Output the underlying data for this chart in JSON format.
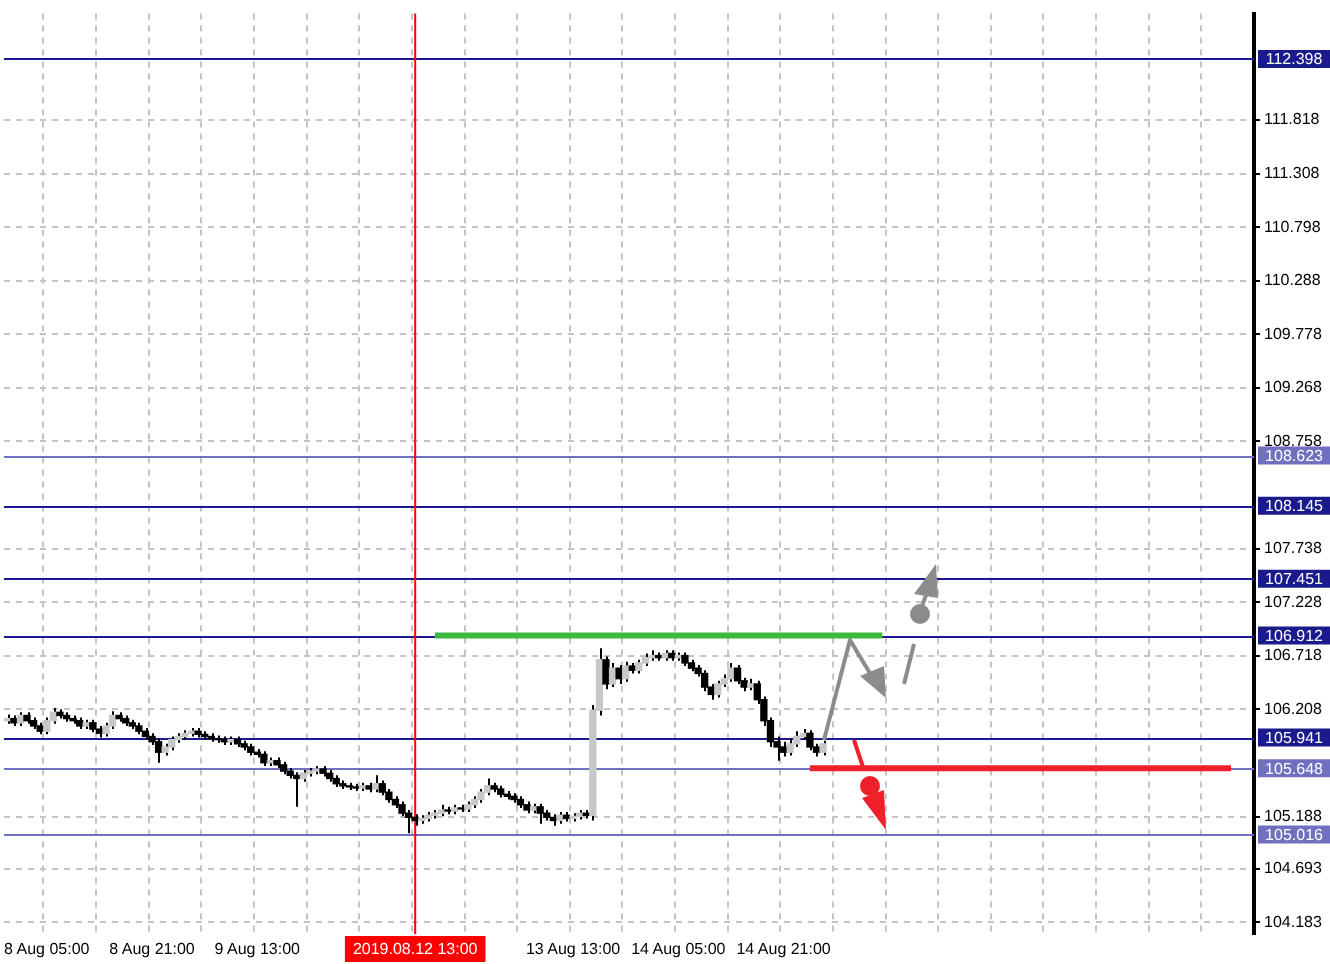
{
  "chart_data": {
    "type": "candlestick",
    "categories": [
      null,
      null,
      null,
      null,
      null,
      null,
      "8 Aug 05:00",
      null,
      null,
      null,
      null,
      null,
      null,
      null,
      null,
      null,
      null,
      null,
      null,
      null,
      null,
      null,
      "8 Aug 21:00",
      null,
      null,
      null,
      null,
      null,
      null,
      null,
      null,
      null,
      null,
      null,
      null,
      null,
      null,
      null,
      "9 Aug 13:00",
      null,
      null,
      null,
      null,
      null,
      null,
      null,
      null,
      null,
      null,
      null,
      null,
      null,
      null,
      null,
      null,
      null,
      null,
      null,
      null,
      null,
      null,
      null,
      "2019.08.12 13:00",
      null,
      null,
      null,
      null,
      null,
      null,
      null,
      null,
      null,
      null,
      null,
      null,
      null,
      null,
      null,
      null,
      null,
      null,
      null,
      null,
      null,
      null,
      null,
      "13 Aug 13:00",
      null,
      null,
      null,
      null,
      null,
      null,
      null,
      null,
      null,
      null,
      null,
      null,
      null,
      null,
      null,
      "14 Aug 05:00",
      null,
      null,
      null,
      null,
      null,
      null,
      null,
      null,
      null,
      null,
      null,
      null,
      null,
      null,
      null,
      "14 Aug 21:00",
      null,
      null,
      null,
      null,
      null,
      null,
      null,
      null,
      null,
      null,
      null,
      null,
      null,
      null,
      null,
      null,
      null,
      null,
      null,
      null,
      null,
      null,
      null,
      null,
      null,
      null,
      null,
      null,
      null,
      null,
      null,
      null,
      null,
      null,
      null,
      null,
      null,
      null,
      null,
      null,
      null,
      null,
      null,
      null,
      null,
      null,
      null,
      null,
      null,
      null,
      null,
      null,
      null,
      null,
      null,
      null,
      null,
      null,
      null,
      null,
      null,
      null,
      null,
      null,
      null,
      null,
      null,
      null,
      null,
      null,
      null
    ],
    "ohlc": [
      [
        106.1,
        106.16,
        106.07,
        106.12
      ],
      [
        106.12,
        106.15,
        106.05,
        106.08
      ],
      [
        106.08,
        106.18,
        106.05,
        106.15
      ],
      [
        106.15,
        106.18,
        106.07,
        106.1
      ],
      [
        106.1,
        106.13,
        106.02,
        106.05
      ],
      [
        106.05,
        106.08,
        105.97,
        106.0
      ],
      [
        106.0,
        106.13,
        105.97,
        106.1
      ],
      [
        106.1,
        106.22,
        106.07,
        106.18
      ],
      [
        106.18,
        106.21,
        106.12,
        106.15
      ],
      [
        106.15,
        106.18,
        106.09,
        106.12
      ],
      [
        106.12,
        106.15,
        106.07,
        106.1
      ],
      [
        106.1,
        106.13,
        106.02,
        106.05
      ],
      [
        106.05,
        106.11,
        106.02,
        106.08
      ],
      [
        106.08,
        106.11,
        105.99,
        106.02
      ],
      [
        106.02,
        106.05,
        105.94,
        105.98
      ],
      [
        105.98,
        106.08,
        105.95,
        106.05
      ],
      [
        106.05,
        106.19,
        106.02,
        106.15
      ],
      [
        106.15,
        106.18,
        106.09,
        106.12
      ],
      [
        106.12,
        106.15,
        106.05,
        106.08
      ],
      [
        106.08,
        106.11,
        106.02,
        106.05
      ],
      [
        106.05,
        106.08,
        105.97,
        106.0
      ],
      [
        106.0,
        106.03,
        105.92,
        105.95
      ],
      [
        105.95,
        105.98,
        105.87,
        105.9
      ],
      [
        105.9,
        105.93,
        105.7,
        105.8
      ],
      [
        105.8,
        105.88,
        105.77,
        105.85
      ],
      [
        105.85,
        105.95,
        105.82,
        105.92
      ],
      [
        105.92,
        105.98,
        105.89,
        105.95
      ],
      [
        105.95,
        106.01,
        105.92,
        105.98
      ],
      [
        105.98,
        106.03,
        105.95,
        106.0
      ],
      [
        106.0,
        106.03,
        105.94,
        105.97
      ],
      [
        105.97,
        106.0,
        105.92,
        105.95
      ],
      [
        105.95,
        105.98,
        105.9,
        105.93
      ],
      [
        105.93,
        105.96,
        105.89,
        105.92
      ],
      [
        105.92,
        105.95,
        105.87,
        105.9
      ],
      [
        105.9,
        105.95,
        105.87,
        105.92
      ],
      [
        105.92,
        105.95,
        105.85,
        105.88
      ],
      [
        105.88,
        105.91,
        105.82,
        105.85
      ],
      [
        105.85,
        105.88,
        105.77,
        105.8
      ],
      [
        105.8,
        105.83,
        105.75,
        105.78
      ],
      [
        105.78,
        105.81,
        105.67,
        105.7
      ],
      [
        105.7,
        105.75,
        105.67,
        105.72
      ],
      [
        105.72,
        105.75,
        105.65,
        105.68
      ],
      [
        105.68,
        105.71,
        105.59,
        105.62
      ],
      [
        105.62,
        105.65,
        105.55,
        105.58
      ],
      [
        105.58,
        105.61,
        105.28,
        105.55
      ],
      [
        105.55,
        105.63,
        105.52,
        105.6
      ],
      [
        105.6,
        105.65,
        105.57,
        105.62
      ],
      [
        105.62,
        105.67,
        105.59,
        105.64
      ],
      [
        105.64,
        105.67,
        105.57,
        105.6
      ],
      [
        105.6,
        105.63,
        105.52,
        105.55
      ],
      [
        105.55,
        105.58,
        105.47,
        105.5
      ],
      [
        105.5,
        105.53,
        105.45,
        105.48
      ],
      [
        105.48,
        105.51,
        105.44,
        105.47
      ],
      [
        105.47,
        105.5,
        105.43,
        105.46
      ],
      [
        105.46,
        105.51,
        105.43,
        105.48
      ],
      [
        105.48,
        105.51,
        105.42,
        105.45
      ],
      [
        105.45,
        105.58,
        105.42,
        105.5
      ],
      [
        105.5,
        105.53,
        105.39,
        105.42
      ],
      [
        105.42,
        105.45,
        105.32,
        105.35
      ],
      [
        105.35,
        105.38,
        105.27,
        105.3
      ],
      [
        105.3,
        105.33,
        105.19,
        105.22
      ],
      [
        105.22,
        105.25,
        105.03,
        105.18
      ],
      [
        105.18,
        105.21,
        105.1,
        105.15
      ],
      [
        105.15,
        105.2,
        105.12,
        105.17
      ],
      [
        105.17,
        105.23,
        105.14,
        105.2
      ],
      [
        105.2,
        105.25,
        105.17,
        105.22
      ],
      [
        105.22,
        105.3,
        105.19,
        105.25
      ],
      [
        105.25,
        105.28,
        105.21,
        105.24
      ],
      [
        105.24,
        105.3,
        105.21,
        105.27
      ],
      [
        105.27,
        105.3,
        105.23,
        105.26
      ],
      [
        105.26,
        105.33,
        105.23,
        105.3
      ],
      [
        105.3,
        105.38,
        105.27,
        105.35
      ],
      [
        105.35,
        105.45,
        105.32,
        105.42
      ],
      [
        105.42,
        105.55,
        105.39,
        105.48
      ],
      [
        105.48,
        105.51,
        105.42,
        105.45
      ],
      [
        105.45,
        105.48,
        105.37,
        105.4
      ],
      [
        105.4,
        105.43,
        105.35,
        105.38
      ],
      [
        105.38,
        105.41,
        105.32,
        105.35
      ],
      [
        105.35,
        105.38,
        105.27,
        105.3
      ],
      [
        105.3,
        105.33,
        105.22,
        105.25
      ],
      [
        105.25,
        105.31,
        105.22,
        105.28
      ],
      [
        105.28,
        105.31,
        105.12,
        105.22
      ],
      [
        105.22,
        105.25,
        105.15,
        105.18
      ],
      [
        105.18,
        105.21,
        105.1,
        105.15
      ],
      [
        105.15,
        105.23,
        105.12,
        105.2
      ],
      [
        105.2,
        105.23,
        105.14,
        105.17
      ],
      [
        105.17,
        105.22,
        105.14,
        105.19
      ],
      [
        105.19,
        105.25,
        105.16,
        105.22
      ],
      [
        105.22,
        105.25,
        105.17,
        105.2
      ],
      [
        105.2,
        106.25,
        105.15,
        106.2
      ],
      [
        106.2,
        106.79,
        106.15,
        106.68
      ],
      [
        106.68,
        106.71,
        106.4,
        106.45
      ],
      [
        106.45,
        106.65,
        106.42,
        106.6
      ],
      [
        106.6,
        106.63,
        106.45,
        106.5
      ],
      [
        106.5,
        106.66,
        106.47,
        106.62
      ],
      [
        106.62,
        106.65,
        106.55,
        106.58
      ],
      [
        106.58,
        106.68,
        106.55,
        106.65
      ],
      [
        106.65,
        106.74,
        106.62,
        106.7
      ],
      [
        106.7,
        106.77,
        106.67,
        106.72
      ],
      [
        106.72,
        106.75,
        106.67,
        106.7
      ],
      [
        106.7,
        106.77,
        106.67,
        106.74
      ],
      [
        106.74,
        106.77,
        106.67,
        106.7
      ],
      [
        106.7,
        106.75,
        106.67,
        106.72
      ],
      [
        106.72,
        106.75,
        106.62,
        106.65
      ],
      [
        106.65,
        106.68,
        106.57,
        106.6
      ],
      [
        106.6,
        106.63,
        106.52,
        106.55
      ],
      [
        106.55,
        106.58,
        106.38,
        106.42
      ],
      [
        106.42,
        106.45,
        106.3,
        106.35
      ],
      [
        106.35,
        106.48,
        106.32,
        106.45
      ],
      [
        106.45,
        106.54,
        106.42,
        106.5
      ],
      [
        106.5,
        106.65,
        106.47,
        106.6
      ],
      [
        106.6,
        106.63,
        106.45,
        106.48
      ],
      [
        106.48,
        106.51,
        106.38,
        106.42
      ],
      [
        106.42,
        106.5,
        106.39,
        106.45
      ],
      [
        106.45,
        106.48,
        106.26,
        106.3
      ],
      [
        106.3,
        106.33,
        106.05,
        106.1
      ],
      [
        106.1,
        106.13,
        105.85,
        105.9
      ],
      [
        105.9,
        105.95,
        105.72,
        105.85
      ],
      [
        105.85,
        105.9,
        105.76,
        105.8
      ],
      [
        105.8,
        105.93,
        105.77,
        105.88
      ],
      [
        105.88,
        106.0,
        105.85,
        105.95
      ],
      [
        105.95,
        106.02,
        105.92,
        105.98
      ],
      [
        105.98,
        106.01,
        105.82,
        105.85
      ],
      [
        105.85,
        105.88,
        105.76,
        105.8
      ],
      [
        105.8,
        105.91,
        105.77,
        105.88
      ],
      null,
      null,
      null,
      null,
      null,
      null,
      null,
      null,
      null,
      null,
      null,
      null,
      null,
      null,
      null,
      null,
      null,
      null,
      null,
      null,
      null,
      null,
      null,
      null,
      null,
      null,
      null,
      null,
      null,
      null,
      null,
      null,
      null,
      null,
      null,
      null,
      null,
      null,
      null,
      null,
      null,
      null,
      null,
      null,
      null,
      null,
      null,
      null,
      null,
      null,
      null,
      null,
      null,
      null,
      null,
      null,
      null,
      null,
      null,
      null,
      null,
      null,
      null,
      null,
      null
    ],
    "series": [
      {
        "type": "line",
        "color": "#3cb83c",
        "values": [
          null,
          null,
          null,
          null,
          null,
          null,
          null,
          null,
          null,
          null,
          null,
          null,
          null,
          null,
          null,
          null,
          null,
          null,
          null,
          null,
          null,
          null,
          null,
          null,
          null,
          null,
          null,
          null,
          null,
          null,
          null,
          null,
          null,
          null,
          null,
          null,
          null,
          null,
          null,
          null,
          null,
          null,
          null,
          null,
          null,
          null,
          null,
          null,
          null,
          null,
          null,
          null,
          null,
          null,
          null,
          null,
          null,
          null,
          null,
          null,
          null,
          null,
          null,
          null,
          null,
          106.912,
          106.912,
          106.912,
          106.912,
          106.912,
          106.912,
          106.912,
          106.912,
          106.912,
          106.912,
          106.912,
          106.912,
          106.912,
          106.912,
          106.912,
          106.912,
          106.912,
          106.912,
          106.912,
          106.912,
          106.912,
          106.912,
          106.912,
          106.912,
          106.912,
          106.912,
          106.912,
          106.912,
          106.912,
          106.912,
          106.912,
          106.912,
          106.912,
          106.912,
          106.912,
          106.912,
          106.912,
          106.912,
          106.912,
          106.912,
          106.912,
          106.912,
          106.912,
          106.912,
          106.912,
          106.912,
          106.912,
          106.912,
          106.912,
          106.912,
          106.912,
          106.912,
          106.912,
          106.912,
          106.912,
          106.912,
          106.912,
          106.912,
          106.912,
          106.912,
          106.912,
          106.912,
          106.912,
          106.912,
          106.912,
          106.912,
          106.912,
          106.912,
          106.912,
          null,
          null,
          null,
          null,
          null,
          null,
          null,
          null,
          null,
          null,
          null,
          null,
          null,
          null,
          null,
          null,
          null,
          null,
          null,
          null,
          null,
          null,
          null,
          null,
          null,
          null,
          null,
          null,
          null,
          null,
          null,
          null,
          null,
          null,
          null,
          null,
          null,
          null,
          null,
          null,
          null,
          null,
          null,
          null,
          null,
          null,
          null,
          null,
          null,
          null,
          null,
          null,
          null,
          null,
          null,
          null
        ]
      },
      {
        "type": "line",
        "color": "#f0202a",
        "values": [
          null,
          null,
          null,
          null,
          null,
          null,
          null,
          null,
          null,
          null,
          null,
          null,
          null,
          null,
          null,
          null,
          null,
          null,
          null,
          null,
          null,
          null,
          null,
          null,
          null,
          null,
          null,
          null,
          null,
          null,
          null,
          null,
          null,
          null,
          null,
          null,
          null,
          null,
          null,
          null,
          null,
          null,
          null,
          null,
          null,
          null,
          null,
          null,
          null,
          null,
          null,
          null,
          null,
          null,
          null,
          null,
          null,
          null,
          null,
          null,
          null,
          null,
          null,
          null,
          null,
          null,
          null,
          null,
          null,
          null,
          null,
          null,
          null,
          null,
          null,
          null,
          null,
          null,
          null,
          null,
          null,
          null,
          null,
          null,
          null,
          null,
          null,
          null,
          null,
          null,
          null,
          null,
          null,
          null,
          null,
          null,
          null,
          null,
          null,
          null,
          null,
          null,
          null,
          null,
          null,
          null,
          null,
          null,
          null,
          null,
          null,
          null,
          null,
          null,
          null,
          null,
          null,
          null,
          null,
          null,
          null,
          null,
          105.648,
          105.648,
          105.648,
          105.648,
          105.648,
          105.648,
          105.648,
          105.648,
          105.648,
          105.648,
          105.648,
          105.648,
          105.648,
          105.648,
          105.648,
          105.648,
          105.648,
          105.648,
          105.648,
          105.648,
          105.648,
          105.648,
          105.648,
          105.648,
          105.648,
          105.648,
          105.648,
          105.648,
          105.648,
          105.648,
          105.648,
          105.648,
          105.648,
          105.648,
          105.648,
          105.648,
          105.648,
          105.648,
          105.648,
          105.648,
          105.648,
          105.648,
          105.648,
          105.648,
          105.648,
          105.648,
          105.648,
          105.648,
          105.648,
          105.648,
          105.648,
          105.648,
          105.648,
          105.648,
          105.648,
          105.648,
          105.648,
          105.648,
          105.648,
          105.648,
          105.648,
          105.648,
          105.648,
          105.648,
          105.648,
          null,
          null,
          null
        ]
      }
    ],
    "ylim": [
      104.07,
      112.83
    ],
    "yticks": [
      111.818,
      111.308,
      110.798,
      110.288,
      109.778,
      109.268,
      108.758,
      107.738,
      107.228,
      106.718,
      106.208,
      105.188,
      104.693,
      104.183
    ],
    "grid": true,
    "ref_lines": [
      {
        "axis": "y",
        "value": 112.398,
        "label": "112.398",
        "color": "#1a1a8c"
      },
      {
        "axis": "y",
        "value": 108.623,
        "label": "108.623",
        "color": "#7070c0"
      },
      {
        "axis": "y",
        "value": 108.145,
        "label": "108.145",
        "color": "#1a1a8c"
      },
      {
        "axis": "y",
        "value": 107.451,
        "label": "107.451",
        "color": "#1a1a8c"
      },
      {
        "axis": "y",
        "value": 106.912,
        "label": "106.912",
        "color": "#1a1a8c"
      },
      {
        "axis": "y",
        "value": 105.941,
        "label": "105.941",
        "color": "#1a1a8c"
      },
      {
        "axis": "y",
        "value": 105.648,
        "label": "105.648",
        "color": "#7070c0"
      },
      {
        "axis": "y",
        "value": 105.016,
        "label": "105.016",
        "color": "#7070c0"
      },
      {
        "axis": "x",
        "value": "2019.08.12 13:00",
        "color": "#ff0000"
      }
    ]
  }
}
